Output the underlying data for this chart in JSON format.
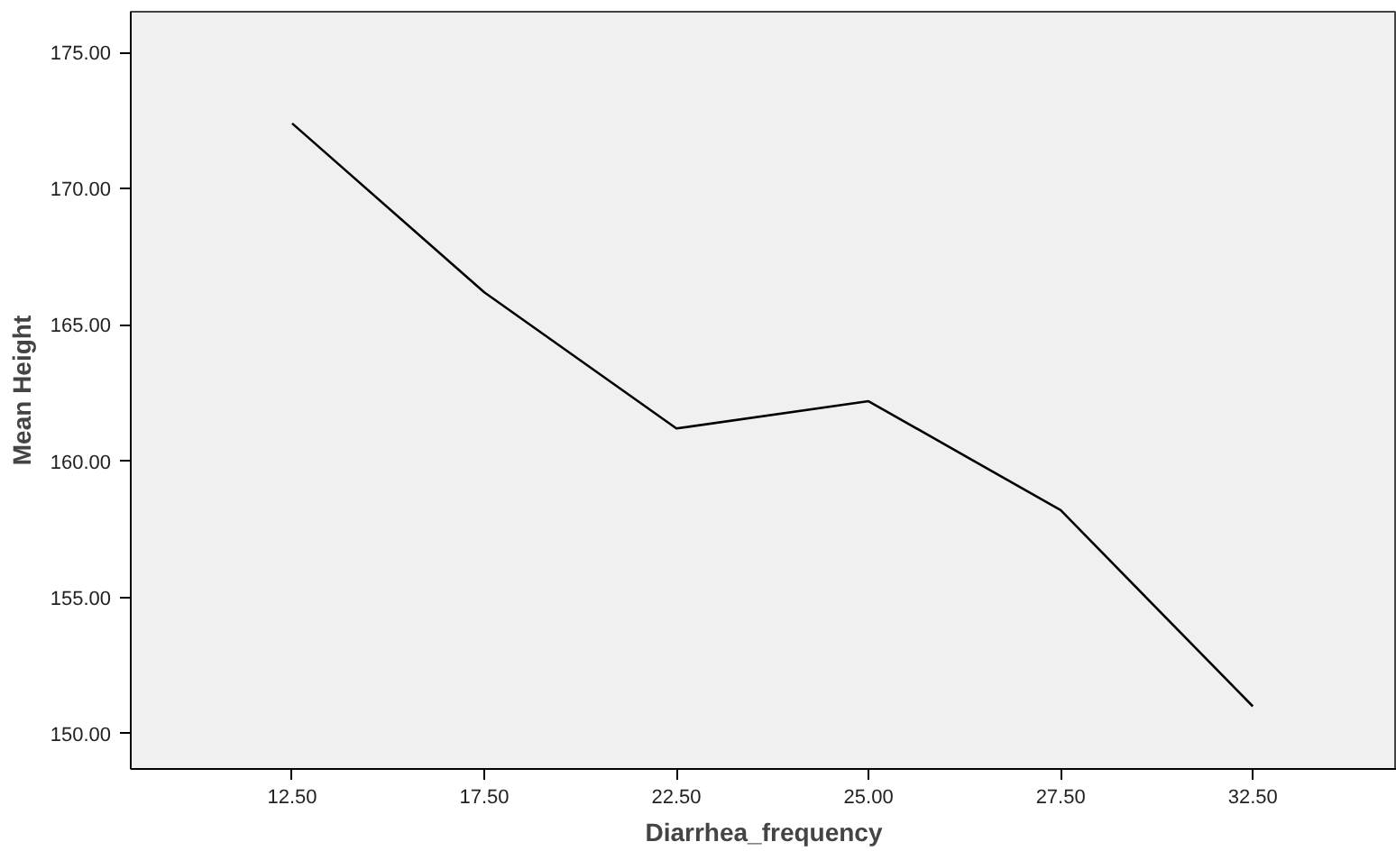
{
  "chart_data": {
    "type": "line",
    "xlabel": "Diarrhea_frequency",
    "ylabel": "Mean Height",
    "categories": [
      "12.50",
      "17.50",
      "22.50",
      "25.00",
      "27.50",
      "32.50"
    ],
    "series": [
      {
        "color": "#000000",
        "values": [
          172.4,
          166.2,
          161.2,
          162.2,
          158.2,
          151.0
        ]
      }
    ],
    "ylim": [
      148.7,
      176.5
    ],
    "yticks": [
      {
        "value": 150,
        "label": "150.00"
      },
      {
        "value": 155,
        "label": "155.00"
      },
      {
        "value": 160,
        "label": "160.00"
      },
      {
        "value": 165,
        "label": "165.00"
      },
      {
        "value": 170,
        "label": "170.00"
      },
      {
        "value": 175,
        "label": "175.00"
      }
    ],
    "grid": false,
    "marker": "none",
    "line_style": "solid"
  }
}
